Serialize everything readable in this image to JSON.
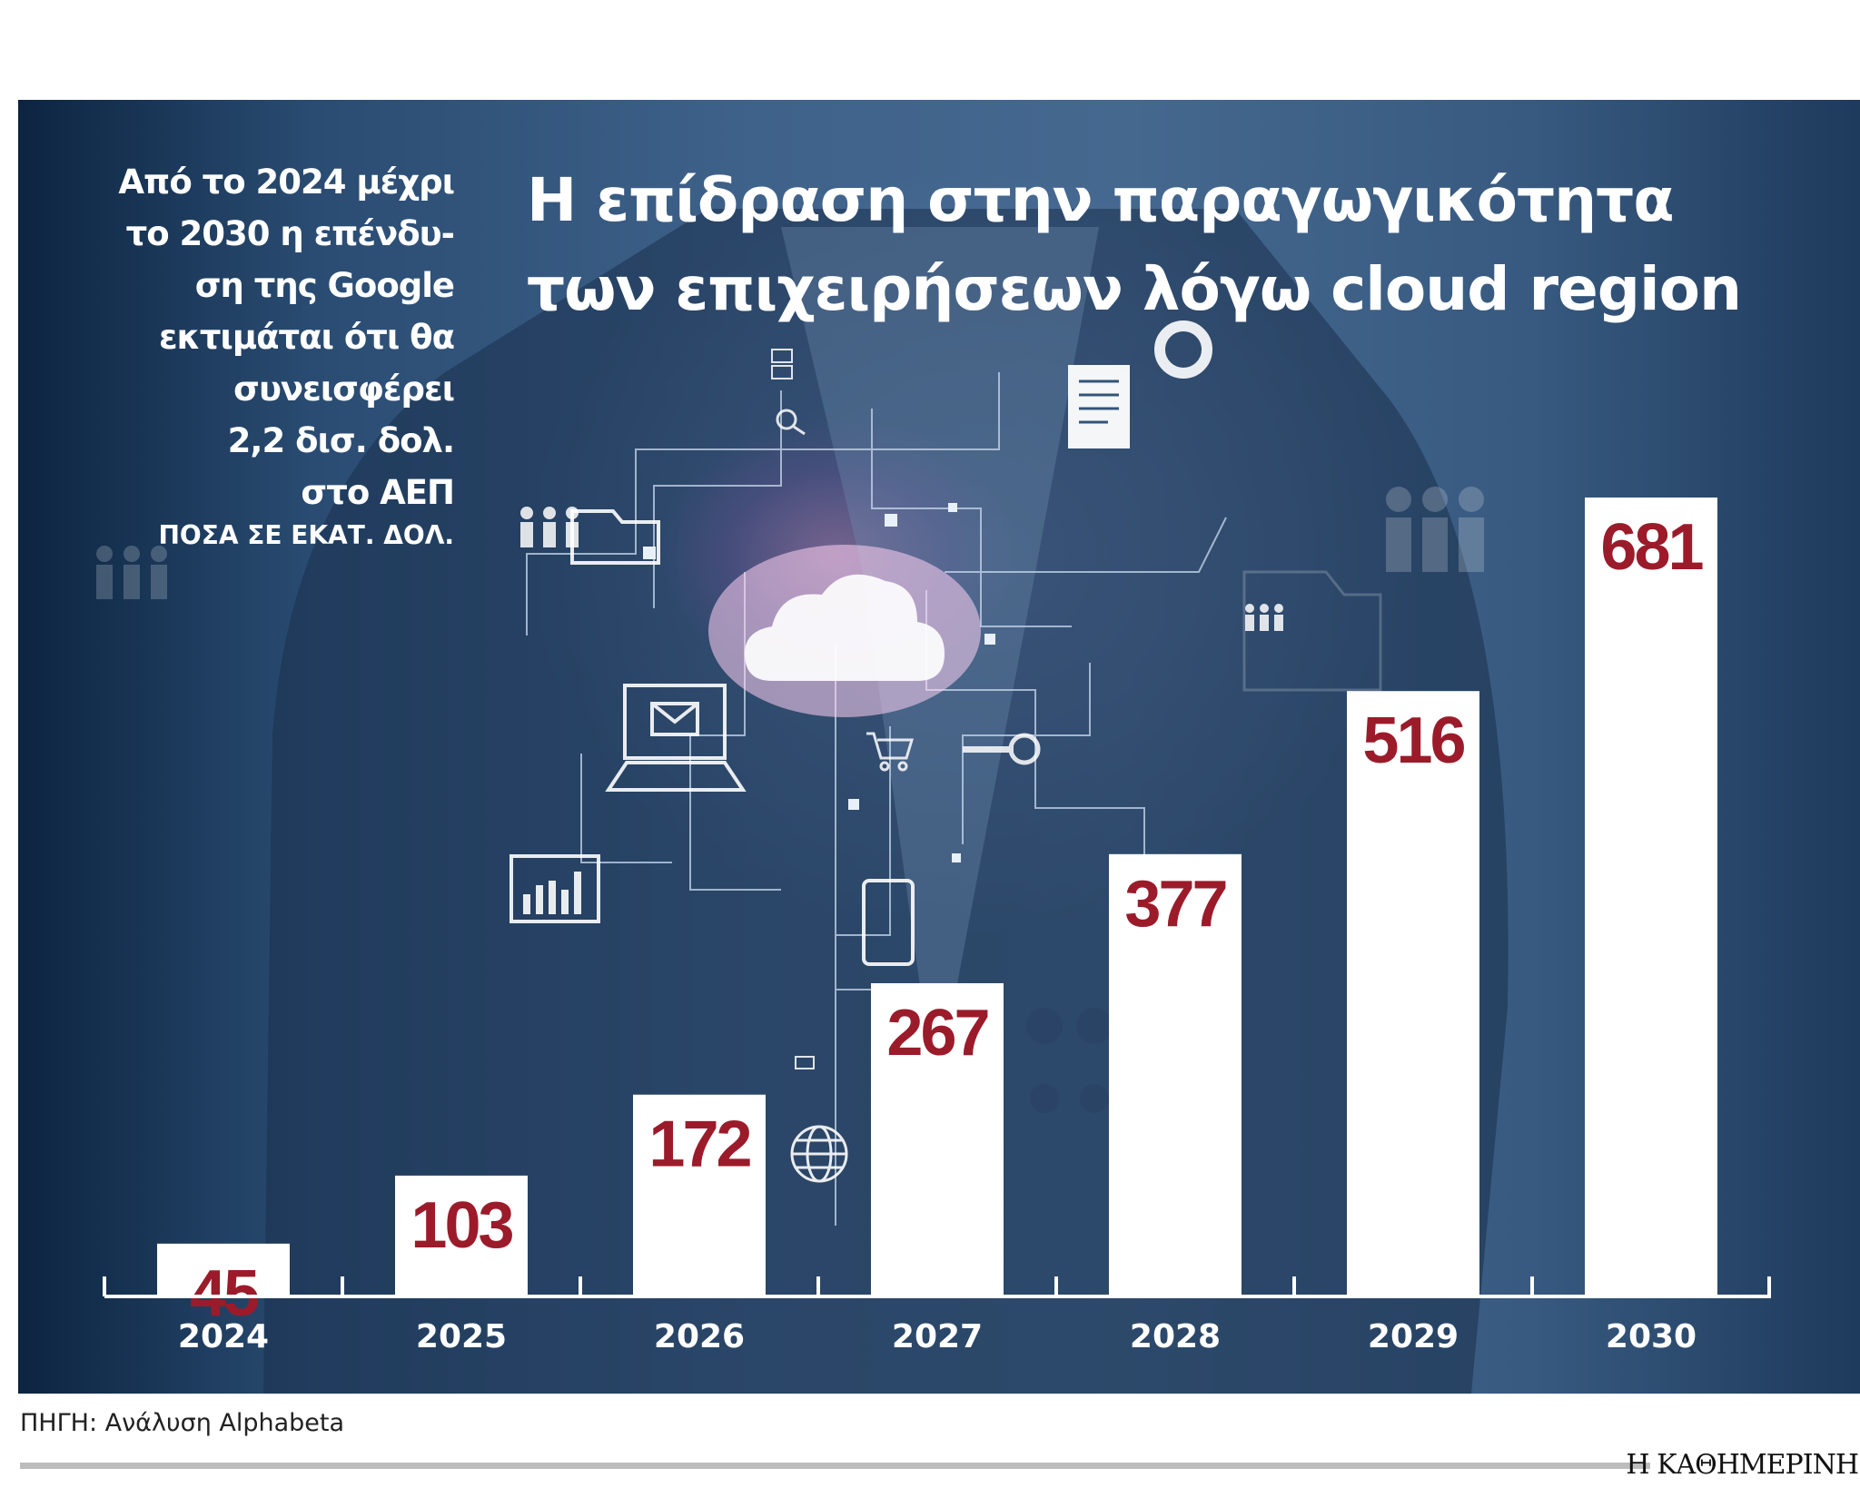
{
  "title_lines": [
    "Η επίδραση στην παραγωγικότητα",
    "των επιχειρήσεων λόγω cloud region"
  ],
  "intro_lines": [
    "Από το 2024 μέχρι",
    "το 2030 η επένδυ-",
    "ση της Google",
    "εκτιμάται ότι θα",
    "συνεισφέρει",
    "2,2 δισ. δολ.",
    "στο ΑΕΠ"
  ],
  "unit_label": "ΠΟΣΑ ΣΕ ΕΚΑΤ. ΔΟΛ.",
  "source": "ΠΗΓΗ: Ανάλυση Alphabeta",
  "brand": "Η ΚΑΘΗΜΕΡΙΝΗ",
  "colors": {
    "bar": "#ffffff",
    "value_text": "#9b1b2a",
    "panel_dark": "#0c2440"
  },
  "chart_data": {
    "type": "bar",
    "title": "Η επίδραση στην παραγωγικότητα των επιχειρήσεων λόγω cloud region",
    "ylabel": "ΠΟΣΑ ΣΕ ΕΚΑΤ. ΔΟΛ.",
    "categories": [
      "2024",
      "2025",
      "2026",
      "2027",
      "2028",
      "2029",
      "2030"
    ],
    "values": [
      45,
      103,
      172,
      267,
      377,
      516,
      681
    ],
    "ylim": [
      0,
      681
    ],
    "grid": false,
    "legend": "none"
  }
}
